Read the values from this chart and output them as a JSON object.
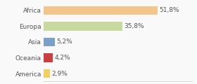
{
  "categories": [
    "Africa",
    "Europa",
    "Asia",
    "Oceania",
    "America"
  ],
  "values": [
    51.8,
    35.8,
    5.2,
    4.2,
    2.9
  ],
  "labels": [
    "51,8%",
    "35,8%",
    "5,2%",
    "4,2%",
    "2,9%"
  ],
  "colors": [
    "#f2c68a",
    "#c8d9a0",
    "#7b9fc8",
    "#c84040",
    "#f0d060"
  ],
  "background_color": "#f9f9f9",
  "label_fontsize": 6.5,
  "tick_fontsize": 6.5,
  "xlim": [
    0,
    68
  ]
}
